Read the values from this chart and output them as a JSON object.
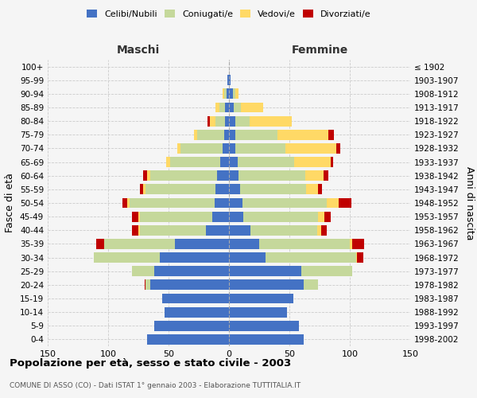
{
  "age_groups": [
    "0-4",
    "5-9",
    "10-14",
    "15-19",
    "20-24",
    "25-29",
    "30-34",
    "35-39",
    "40-44",
    "45-49",
    "50-54",
    "55-59",
    "60-64",
    "65-69",
    "70-74",
    "75-79",
    "80-84",
    "85-89",
    "90-94",
    "95-99",
    "100+"
  ],
  "birth_years": [
    "1998-2002",
    "1993-1997",
    "1988-1992",
    "1983-1987",
    "1978-1982",
    "1973-1977",
    "1968-1972",
    "1963-1967",
    "1958-1962",
    "1953-1957",
    "1948-1952",
    "1943-1947",
    "1938-1942",
    "1933-1937",
    "1928-1932",
    "1923-1927",
    "1918-1922",
    "1913-1917",
    "1908-1912",
    "1903-1907",
    "≤ 1902"
  ],
  "males": {
    "single": [
      68,
      62,
      53,
      55,
      65,
      62,
      57,
      45,
      19,
      14,
      12,
      11,
      10,
      7,
      5,
      4,
      3,
      3,
      2,
      1,
      0
    ],
    "married": [
      0,
      0,
      0,
      0,
      4,
      18,
      55,
      58,
      55,
      60,
      70,
      58,
      55,
      42,
      35,
      22,
      8,
      5,
      2,
      0,
      0
    ],
    "widowed": [
      0,
      0,
      0,
      0,
      0,
      0,
      0,
      0,
      1,
      1,
      2,
      2,
      3,
      3,
      3,
      3,
      5,
      3,
      1,
      0,
      0
    ],
    "divorced": [
      0,
      0,
      0,
      0,
      1,
      0,
      0,
      7,
      5,
      5,
      4,
      3,
      3,
      0,
      0,
      0,
      2,
      0,
      0,
      0,
      0
    ]
  },
  "females": {
    "single": [
      62,
      58,
      48,
      53,
      62,
      60,
      30,
      25,
      18,
      12,
      11,
      9,
      8,
      7,
      5,
      5,
      5,
      4,
      3,
      1,
      0
    ],
    "married": [
      0,
      0,
      0,
      0,
      12,
      42,
      75,
      75,
      55,
      62,
      70,
      55,
      55,
      47,
      42,
      35,
      12,
      6,
      2,
      0,
      0
    ],
    "widowed": [
      0,
      0,
      0,
      0,
      0,
      0,
      1,
      2,
      3,
      5,
      10,
      10,
      15,
      30,
      42,
      42,
      35,
      18,
      3,
      0,
      0
    ],
    "divorced": [
      0,
      0,
      0,
      0,
      0,
      0,
      5,
      10,
      5,
      5,
      10,
      3,
      4,
      2,
      3,
      5,
      0,
      0,
      0,
      0,
      0
    ]
  },
  "colors": {
    "single": "#4472c4",
    "married": "#c5d89b",
    "widowed": "#ffd966",
    "divorced": "#c00000"
  },
  "legend_labels": [
    "Celibi/Nubili",
    "Coniugati/e",
    "Vedovi/e",
    "Divorziati/e"
  ],
  "title": "Popolazione per età, sesso e stato civile - 2003",
  "subtitle": "COMUNE DI ASSO (CO) - Dati ISTAT 1° gennaio 2003 - Elaborazione TUTTITALIA.IT",
  "xlabel_left": "Maschi",
  "xlabel_right": "Femmine",
  "ylabel_left": "Fasce di età",
  "ylabel_right": "Anni di nascita",
  "xlim": 150,
  "bg_color": "#f5f5f5",
  "grid_color": "#cccccc"
}
